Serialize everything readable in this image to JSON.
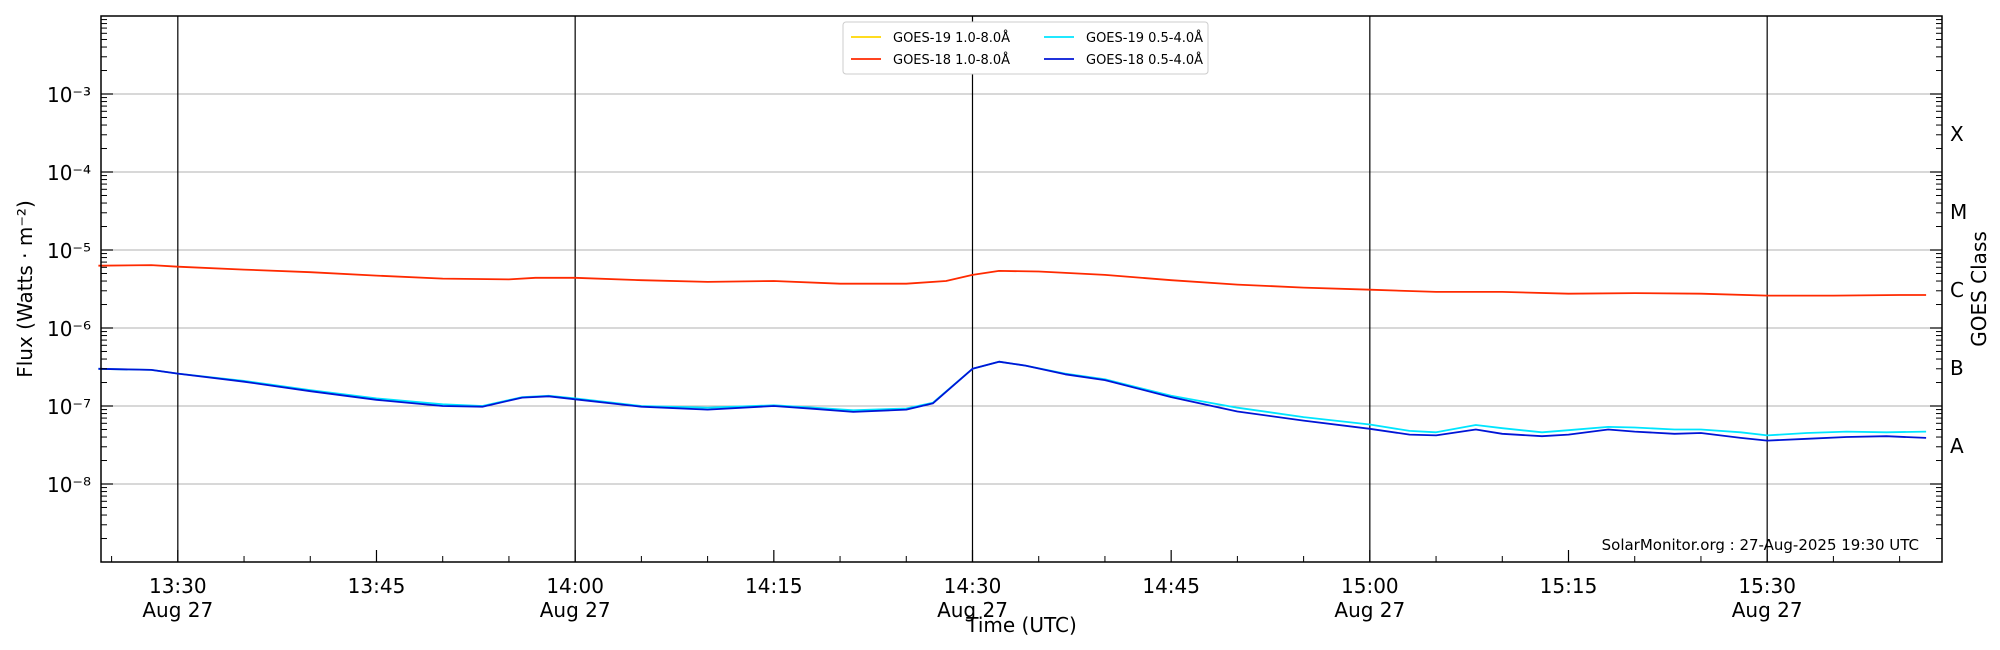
{
  "chart_data": {
    "type": "line",
    "xlabel": "Time (UTC)",
    "ylabel": "Flux (Watts · m⁻²)",
    "right_label": "GOES Class",
    "watermark": "SolarMonitor.org : 27-Aug-2025 19:30 UTC",
    "y_scale": "log",
    "ylim": [
      1e-09,
      0.01
    ],
    "xlim_minutes": [
      "13:24",
      "15:43"
    ],
    "grid": "horizontal at decades",
    "legend_position": "top-center",
    "x_ticks": [
      {
        "time": "13:30",
        "label": "13:30",
        "date": "Aug 27",
        "vline": true
      },
      {
        "time": "13:45",
        "label": "13:45",
        "date": "",
        "vline": false
      },
      {
        "time": "14:00",
        "label": "14:00",
        "date": "Aug 27",
        "vline": true
      },
      {
        "time": "14:15",
        "label": "14:15",
        "date": "",
        "vline": false
      },
      {
        "time": "14:30",
        "label": "14:30",
        "date": "Aug 27",
        "vline": true
      },
      {
        "time": "14:45",
        "label": "14:45",
        "date": "",
        "vline": false
      },
      {
        "time": "15:00",
        "label": "15:00",
        "date": "Aug 27",
        "vline": true
      },
      {
        "time": "15:15",
        "label": "15:15",
        "date": "",
        "vline": false
      },
      {
        "time": "15:30",
        "label": "15:30",
        "date": "Aug 27",
        "vline": true
      }
    ],
    "y_ticks": [
      {
        "exp": -3,
        "label": "10⁻³"
      },
      {
        "exp": -4,
        "label": "10⁻⁴"
      },
      {
        "exp": -5,
        "label": "10⁻⁵"
      },
      {
        "exp": -6,
        "label": "10⁻⁶"
      },
      {
        "exp": -7,
        "label": "10⁻⁷"
      },
      {
        "exp": -8,
        "label": "10⁻⁸"
      }
    ],
    "goes_classes": [
      {
        "label": "X",
        "exp": -3.5
      },
      {
        "label": "M",
        "exp": -4.5
      },
      {
        "label": "C",
        "exp": -5.5
      },
      {
        "label": "B",
        "exp": -6.5
      },
      {
        "label": "A",
        "exp": -7.5
      }
    ],
    "series": [
      {
        "name": "GOES-19 1.0-8.0Å",
        "color": "#ffd700",
        "points": []
      },
      {
        "name": "GOES-18 1.0-8.0Å",
        "color": "#ff2a00",
        "points": [
          [
            "13:24",
            6.3e-06
          ],
          [
            "13:28",
            6.4e-06
          ],
          [
            "13:30",
            6.1e-06
          ],
          [
            "13:35",
            5.6e-06
          ],
          [
            "13:40",
            5.2e-06
          ],
          [
            "13:45",
            4.7e-06
          ],
          [
            "13:50",
            4.3e-06
          ],
          [
            "13:55",
            4.2e-06
          ],
          [
            "13:57",
            4.4e-06
          ],
          [
            "14:00",
            4.4e-06
          ],
          [
            "14:05",
            4.1e-06
          ],
          [
            "14:10",
            3.9e-06
          ],
          [
            "14:15",
            4e-06
          ],
          [
            "14:20",
            3.7e-06
          ],
          [
            "14:25",
            3.7e-06
          ],
          [
            "14:28",
            4e-06
          ],
          [
            "14:30",
            4.8e-06
          ],
          [
            "14:32",
            5.4e-06
          ],
          [
            "14:35",
            5.3e-06
          ],
          [
            "14:40",
            4.8e-06
          ],
          [
            "14:45",
            4.1e-06
          ],
          [
            "14:50",
            3.6e-06
          ],
          [
            "14:55",
            3.3e-06
          ],
          [
            "15:00",
            3.1e-06
          ],
          [
            "15:05",
            2.9e-06
          ],
          [
            "15:10",
            2.9e-06
          ],
          [
            "15:15",
            2.75e-06
          ],
          [
            "15:20",
            2.8e-06
          ],
          [
            "15:25",
            2.75e-06
          ],
          [
            "15:30",
            2.6e-06
          ],
          [
            "15:35",
            2.6e-06
          ],
          [
            "15:40",
            2.65e-06
          ],
          [
            "15:42",
            2.65e-06
          ]
        ]
      },
      {
        "name": "GOES-19 0.5-4.0Å",
        "color": "#00e5ff",
        "points": [
          [
            "13:24",
            3e-07
          ],
          [
            "13:28",
            2.9e-07
          ],
          [
            "13:30",
            2.6e-07
          ],
          [
            "13:35",
            2.1e-07
          ],
          [
            "13:40",
            1.6e-07
          ],
          [
            "13:45",
            1.25e-07
          ],
          [
            "13:50",
            1.05e-07
          ],
          [
            "13:53",
            1e-07
          ],
          [
            "13:56",
            1.3e-07
          ],
          [
            "13:58",
            1.35e-07
          ],
          [
            "14:00",
            1.25e-07
          ],
          [
            "14:05",
            1e-07
          ],
          [
            "14:10",
            9.5e-08
          ],
          [
            "14:15",
            1.02e-07
          ],
          [
            "14:18",
            9.5e-08
          ],
          [
            "14:21",
            8.8e-08
          ],
          [
            "14:25",
            9.3e-08
          ],
          [
            "14:27",
            1.1e-07
          ],
          [
            "14:30",
            3e-07
          ],
          [
            "14:32",
            3.7e-07
          ],
          [
            "14:34",
            3.3e-07
          ],
          [
            "14:37",
            2.6e-07
          ],
          [
            "14:40",
            2.2e-07
          ],
          [
            "14:45",
            1.35e-07
          ],
          [
            "14:50",
            9.5e-08
          ],
          [
            "14:55",
            7.2e-08
          ],
          [
            "15:00",
            5.8e-08
          ],
          [
            "15:03",
            4.8e-08
          ],
          [
            "15:05",
            4.6e-08
          ],
          [
            "15:08",
            5.7e-08
          ],
          [
            "15:10",
            5.2e-08
          ],
          [
            "15:13",
            4.6e-08
          ],
          [
            "15:15",
            4.9e-08
          ],
          [
            "15:18",
            5.4e-08
          ],
          [
            "15:20",
            5.3e-08
          ],
          [
            "15:23",
            5e-08
          ],
          [
            "15:25",
            5e-08
          ],
          [
            "15:28",
            4.6e-08
          ],
          [
            "15:30",
            4.2e-08
          ],
          [
            "15:33",
            4.5e-08
          ],
          [
            "15:36",
            4.7e-08
          ],
          [
            "15:39",
            4.6e-08
          ],
          [
            "15:42",
            4.7e-08
          ]
        ]
      },
      {
        "name": "GOES-18 0.5-4.0Å",
        "color": "#0015d6",
        "points": [
          [
            "13:24",
            3e-07
          ],
          [
            "13:28",
            2.9e-07
          ],
          [
            "13:30",
            2.6e-07
          ],
          [
            "13:35",
            2.05e-07
          ],
          [
            "13:40",
            1.55e-07
          ],
          [
            "13:45",
            1.2e-07
          ],
          [
            "13:50",
            1e-07
          ],
          [
            "13:53",
            9.8e-08
          ],
          [
            "13:56",
            1.28e-07
          ],
          [
            "13:58",
            1.33e-07
          ],
          [
            "14:00",
            1.22e-07
          ],
          [
            "14:05",
            9.8e-08
          ],
          [
            "14:10",
            9e-08
          ],
          [
            "14:15",
            1e-07
          ],
          [
            "14:18",
            9.2e-08
          ],
          [
            "14:21",
            8.4e-08
          ],
          [
            "14:25",
            9e-08
          ],
          [
            "14:27",
            1.08e-07
          ],
          [
            "14:30",
            3e-07
          ],
          [
            "14:32",
            3.7e-07
          ],
          [
            "14:34",
            3.3e-07
          ],
          [
            "14:37",
            2.55e-07
          ],
          [
            "14:40",
            2.15e-07
          ],
          [
            "14:45",
            1.3e-07
          ],
          [
            "14:50",
            8.5e-08
          ],
          [
            "14:55",
            6.5e-08
          ],
          [
            "15:00",
            5.1e-08
          ],
          [
            "15:03",
            4.3e-08
          ],
          [
            "15:05",
            4.2e-08
          ],
          [
            "15:08",
            5e-08
          ],
          [
            "15:10",
            4.4e-08
          ],
          [
            "15:13",
            4.1e-08
          ],
          [
            "15:15",
            4.3e-08
          ],
          [
            "15:18",
            5e-08
          ],
          [
            "15:20",
            4.7e-08
          ],
          [
            "15:23",
            4.4e-08
          ],
          [
            "15:25",
            4.5e-08
          ],
          [
            "15:28",
            3.9e-08
          ],
          [
            "15:30",
            3.6e-08
          ],
          [
            "15:33",
            3.8e-08
          ],
          [
            "15:36",
            4e-08
          ],
          [
            "15:39",
            4.1e-08
          ],
          [
            "15:42",
            3.9e-08
          ]
        ]
      }
    ],
    "legend": [
      {
        "series": 0,
        "col": 0,
        "row": 0
      },
      {
        "series": 2,
        "col": 1,
        "row": 0
      },
      {
        "series": 1,
        "col": 0,
        "row": 1
      },
      {
        "series": 3,
        "col": 1,
        "row": 1
      }
    ]
  }
}
